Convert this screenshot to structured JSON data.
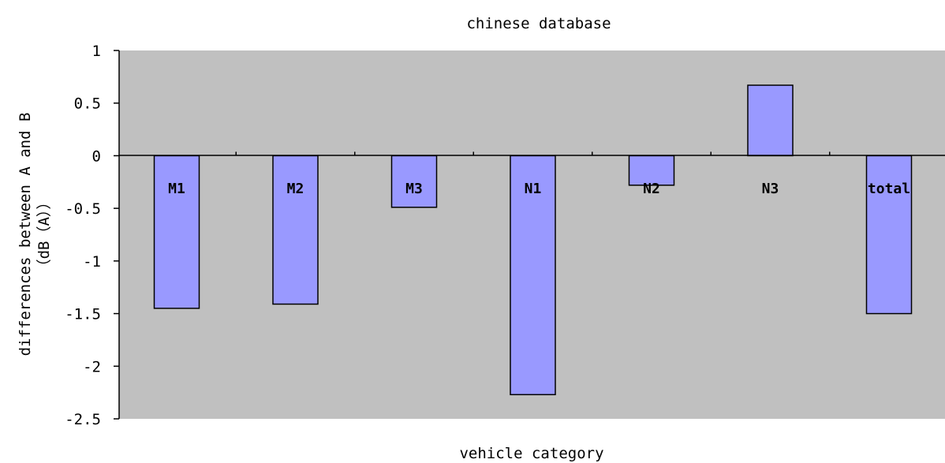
{
  "chart_data": {
    "type": "bar",
    "title": "chinese database",
    "xlabel": "vehicle category",
    "ylabel_line1": "differences between A and B",
    "ylabel_line2": "（dB（A））",
    "categories": [
      "M1",
      "M2",
      "M3",
      "N1",
      "N2",
      "N3",
      "total"
    ],
    "series": [
      {
        "values": [
          -1.45,
          -1.41,
          -0.49,
          -2.27,
          -0.28,
          0.67,
          -1.5
        ]
      }
    ],
    "ylim": [
      -2.5,
      1
    ],
    "yticks": [
      "1",
      "0.5",
      "0",
      "-0.5",
      "-1",
      "-1.5",
      "-2",
      "-2.5"
    ],
    "legend": "none",
    "grid": false,
    "colors": {
      "plot_background": "#c0c0c0",
      "bar_fill": "#9999ff",
      "bar_stroke": "#000000"
    }
  }
}
